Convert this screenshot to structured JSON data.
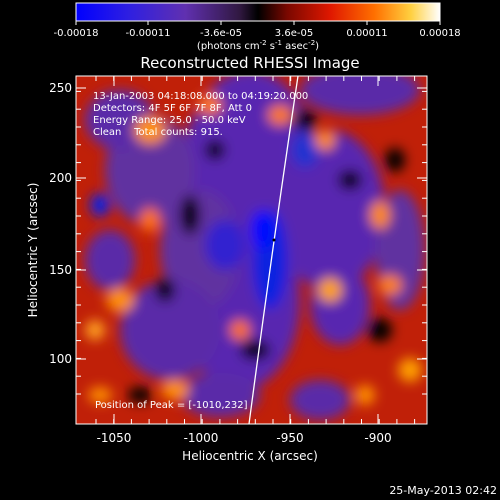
{
  "colorbar": {
    "tick_labels": [
      "-0.00018",
      "-0.00011",
      "-3.6e-05",
      "3.6e-05",
      "0.00011",
      "0.00018"
    ],
    "units_prefix": "(photons cm",
    "units_exp1": "-2",
    "units_mid": " s",
    "units_exp2": "-1",
    "units_mid2": " asec",
    "units_exp3": "-2",
    "units_suffix": ")",
    "range": [
      -0.00018,
      0.00018
    ]
  },
  "plot": {
    "title": "Reconstructed RHESSI Image",
    "xlabel": "Heliocentric X (arcsec)",
    "ylabel": "Heliocentric Y (arcsec)",
    "x_ticks": [
      "-1050",
      "-1000",
      "-950",
      "-900"
    ],
    "y_ticks": [
      "100",
      "150",
      "200",
      "250"
    ],
    "xlim": [
      -1068,
      -868
    ],
    "ylim": [
      64,
      256
    ]
  },
  "annotations": {
    "time_range": "13-Jan-2003 04:18:08.000 to 04:19:20.000",
    "detectors": "Detectors: 4F 5F 6F 7F 8F, Att 0",
    "energy_range": "Energy Range: 25.0 - 50.0 keV",
    "clean_info": "Clean    Total counts: 915.",
    "peak_position": "Position of Peak = [-1010,232]"
  },
  "footer": {
    "timestamp": "25-May-2013 02:42"
  },
  "colors": {
    "background": "#000000",
    "colormap": [
      "#0000ff",
      "#5020c0",
      "#6030a0",
      "#000000",
      "#aa1000",
      "#ff3000",
      "#ffa000",
      "#ffffff"
    ]
  }
}
